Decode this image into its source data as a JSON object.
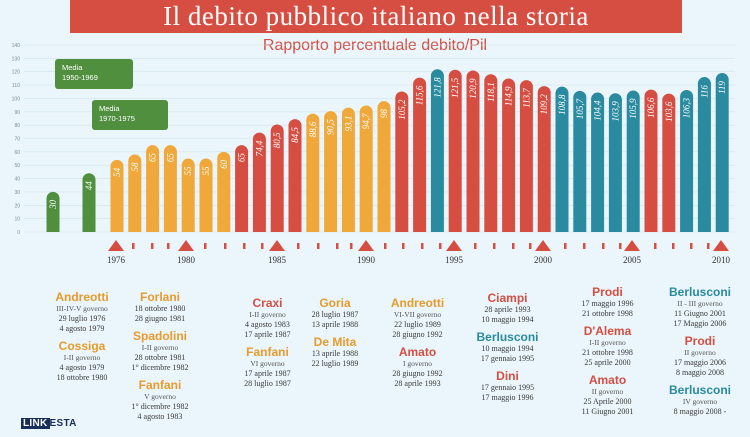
{
  "title": "Il debito pubblico italiano nella storia",
  "subtitle": "Rapporto percentuale debito/Pil",
  "logo": {
    "box": "LINK",
    "rest": "ESTA"
  },
  "legends": [
    {
      "line1": "Media",
      "line2": "1950-1969"
    },
    {
      "line1": "Media",
      "line2": "1970-1975"
    }
  ],
  "colors": {
    "green": "#4f8f3e",
    "orange": "#f0a83a",
    "red": "#d64e42",
    "teal": "#2a8a9f",
    "title_bg": "#d64e42"
  },
  "chart_data": {
    "type": "bar",
    "title": "Il debito pubblico italiano nella storia",
    "subtitle": "Rapporto percentuale debito/Pil",
    "ylim": [
      0,
      140
    ],
    "y_ticks": [
      0,
      10,
      20,
      30,
      40,
      50,
      60,
      70,
      80,
      90,
      100,
      110,
      120,
      130,
      140
    ],
    "grid": true,
    "bars": [
      {
        "label": "30",
        "value": 30,
        "color": "green"
      },
      {
        "label": "44",
        "value": 44,
        "color": "green"
      },
      {
        "label": "54",
        "value": 54,
        "color": "orange"
      },
      {
        "label": "58",
        "value": 58,
        "color": "orange"
      },
      {
        "label": "65",
        "value": 65,
        "color": "orange"
      },
      {
        "label": "65",
        "value": 65,
        "color": "orange"
      },
      {
        "label": "55",
        "value": 55,
        "color": "orange"
      },
      {
        "label": "55",
        "value": 55,
        "color": "orange"
      },
      {
        "label": "60",
        "value": 60,
        "color": "orange"
      },
      {
        "label": "65",
        "value": 65,
        "color": "red"
      },
      {
        "label": "74,4",
        "value": 74.4,
        "color": "red"
      },
      {
        "label": "80,5",
        "value": 80.5,
        "color": "red"
      },
      {
        "label": "84,5",
        "value": 84.5,
        "color": "red"
      },
      {
        "label": "88,6",
        "value": 88.6,
        "color": "orange"
      },
      {
        "label": "90,5",
        "value": 90.5,
        "color": "orange"
      },
      {
        "label": "93,1",
        "value": 93.1,
        "color": "orange"
      },
      {
        "label": "94,7",
        "value": 94.7,
        "color": "orange"
      },
      {
        "label": "98",
        "value": 98,
        "color": "orange"
      },
      {
        "label": "105,2",
        "value": 105.2,
        "color": "red"
      },
      {
        "label": "115,6",
        "value": 115.6,
        "color": "red"
      },
      {
        "label": "121,8",
        "value": 121.8,
        "color": "teal"
      },
      {
        "label": "121,5",
        "value": 121.5,
        "color": "red"
      },
      {
        "label": "120,9",
        "value": 120.9,
        "color": "red"
      },
      {
        "label": "118,1",
        "value": 118.1,
        "color": "red"
      },
      {
        "label": "114,9",
        "value": 114.9,
        "color": "red"
      },
      {
        "label": "113,7",
        "value": 113.7,
        "color": "red"
      },
      {
        "label": "109,2",
        "value": 109.2,
        "color": "red"
      },
      {
        "label": "108,8",
        "value": 108.8,
        "color": "teal"
      },
      {
        "label": "105,7",
        "value": 105.7,
        "color": "teal"
      },
      {
        "label": "104,4",
        "value": 104.4,
        "color": "teal"
      },
      {
        "label": "103,9",
        "value": 103.9,
        "color": "teal"
      },
      {
        "label": "105,9",
        "value": 105.9,
        "color": "teal"
      },
      {
        "label": "106,6",
        "value": 106.6,
        "color": "red"
      },
      {
        "label": "103,6",
        "value": 103.6,
        "color": "red"
      },
      {
        "label": "106,3",
        "value": 106.3,
        "color": "teal"
      },
      {
        "label": "116",
        "value": 116,
        "color": "teal"
      },
      {
        "label": "119",
        "value": 119,
        "color": "teal"
      }
    ],
    "years": [
      "1976",
      "1980",
      "1985",
      "1990",
      "1995",
      "2000",
      "2005",
      "2010"
    ]
  },
  "governments": [
    {
      "entries": [
        {
          "pm": "Andreotti",
          "pm_color": "orange",
          "gov": "III-IV-V governo",
          "dates": [
            "29 luglio 1976",
            "4 agosto 1979"
          ]
        },
        {
          "pm": "Cossiga",
          "pm_color": "orange",
          "gov": "I-II governo",
          "dates": [
            "4 agosto 1979",
            "18 ottobre 1980"
          ]
        }
      ]
    },
    {
      "entries": [
        {
          "pm": "Forlani",
          "pm_color": "orange",
          "gov": "",
          "dates": [
            "18 ottobre 1980",
            "28 giugno 1981"
          ]
        },
        {
          "pm": "Spadolini",
          "pm_color": "orange",
          "gov": "I-II governo",
          "dates": [
            "28 ottobre 1981",
            "1° dicembre 1982"
          ]
        },
        {
          "pm": "Fanfani",
          "pm_color": "orange",
          "gov": "V governo",
          "dates": [
            "1° dicembre 1982",
            "4 agosto 1983"
          ]
        }
      ]
    },
    {
      "entries": [
        {
          "pm": "Craxi",
          "pm_color": "red",
          "gov": "I-II governo",
          "dates": [
            "4 agosto 1983",
            "17 aprile 1987"
          ]
        },
        {
          "pm": "Fanfani",
          "pm_color": "orange",
          "gov": "VI governo",
          "dates": [
            "17 aprile 1987",
            "28 luglio 1987"
          ]
        }
      ]
    },
    {
      "entries": [
        {
          "pm": "Goria",
          "pm_color": "orange",
          "gov": "",
          "dates": [
            "28 luglio 1987",
            "13 aprile 1988"
          ]
        },
        {
          "pm": "De Mita",
          "pm_color": "orange",
          "gov": "",
          "dates": [
            "13 aprile 1988",
            "22 luglio 1989"
          ]
        }
      ]
    },
    {
      "entries": [
        {
          "pm": "Andreotti",
          "pm_color": "orange",
          "gov": "VI-VII governo",
          "dates": [
            "22 luglio 1989",
            "28 giugno 1992"
          ]
        },
        {
          "pm": "Amato",
          "pm_color": "red",
          "gov": "I governo",
          "dates": [
            "28 giugno 1992",
            "28 aprile 1993"
          ]
        }
      ]
    },
    {
      "entries": [
        {
          "pm": "Ciampi",
          "pm_color": "red",
          "gov": "",
          "dates": [
            "28 aprile 1993",
            "10 maggio 1994"
          ]
        },
        {
          "pm": "Berlusconi",
          "pm_color": "teal",
          "gov": "",
          "dates": [
            "10 maggio 1994",
            "17 gennaio 1995"
          ]
        },
        {
          "pm": "Dini",
          "pm_color": "red",
          "gov": "",
          "dates": [
            "17 gennaio 1995",
            "17 maggio 1996"
          ]
        }
      ]
    },
    {
      "entries": [
        {
          "pm": "Prodi",
          "pm_color": "red",
          "gov": "",
          "dates": [
            "17 maggio 1996",
            "21 ottobre 1998"
          ]
        },
        {
          "pm": "D'Alema",
          "pm_color": "red",
          "gov": "I-II governo",
          "dates": [
            "21 ottobre 1998",
            "25 aprile 2000"
          ]
        },
        {
          "pm": "Amato",
          "pm_color": "red",
          "gov": "II governo",
          "dates": [
            "25 Aprile 2000",
            "11 Giugno 2001"
          ]
        }
      ]
    },
    {
      "entries": [
        {
          "pm": "Berlusconi",
          "pm_color": "teal",
          "gov": "II - III governo",
          "dates": [
            "11 Giugno 2001",
            "17 Maggio 2006"
          ]
        },
        {
          "pm": "Prodi",
          "pm_color": "red",
          "gov": "II governo",
          "dates": [
            "17 maggio 2006",
            "8 maggio 2008"
          ]
        },
        {
          "pm": "Berlusconi",
          "pm_color": "teal",
          "gov": "IV governo",
          "dates": [
            "8 maggio 2008 -"
          ]
        }
      ]
    }
  ]
}
